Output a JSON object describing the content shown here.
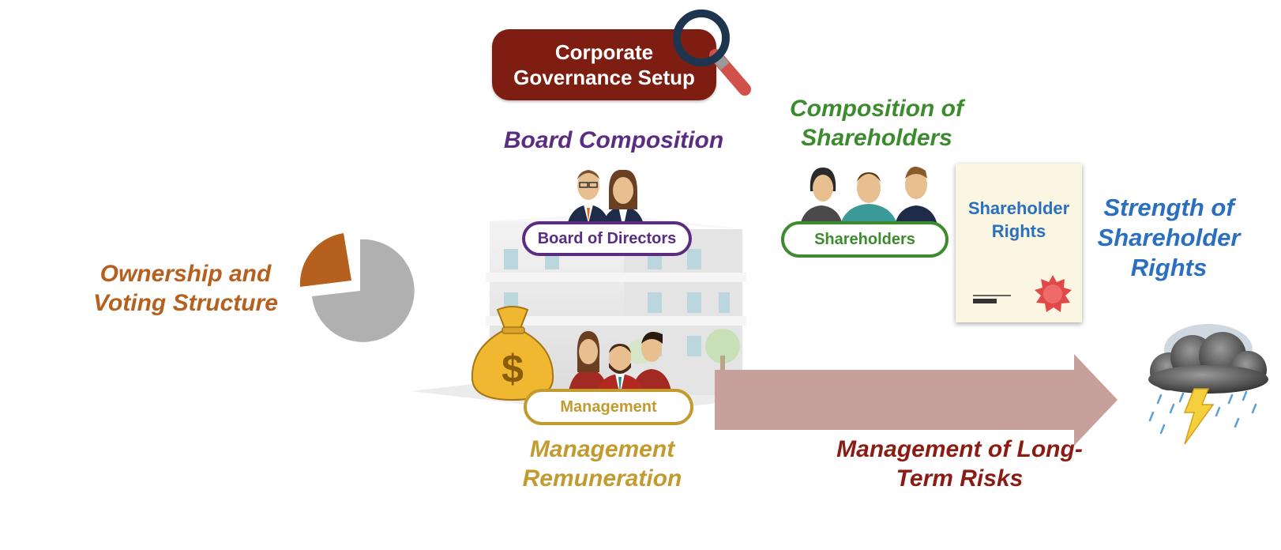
{
  "title": "Corporate Governance Setup",
  "labels": {
    "ownership": "Ownership and Voting Structure",
    "board_composition": "Board Composition",
    "composition_shareholders": "Composition of Shareholders",
    "strength_rights": "Strength of Shareholder Rights",
    "mgmt_remuneration": "Management Remuneration",
    "long_term_risks": "Management of Long-Term Risks"
  },
  "pills": {
    "board": "Board of Directors",
    "shareholders": "Shareholders",
    "management": "Management"
  },
  "certificate": {
    "title": "Shareholder Rights"
  },
  "icons": {
    "magnifier": "magnifying-glass-icon",
    "pie": "pie-chart-icon",
    "building": "office-building-icon",
    "money_bag": "money-bag-icon",
    "storm": "storm-cloud-icon",
    "seal": "seal-icon",
    "people": "people-icon"
  },
  "colors": {
    "title_bg": "#7e1e12",
    "ownership": "#b5601f",
    "board": "#5a2d82",
    "shareholders": "#3d8b2f",
    "rights": "#2a6fc0",
    "remuneration": "#c29a2e",
    "risks": "#8a1c14",
    "arrow": "#c8a09b"
  }
}
